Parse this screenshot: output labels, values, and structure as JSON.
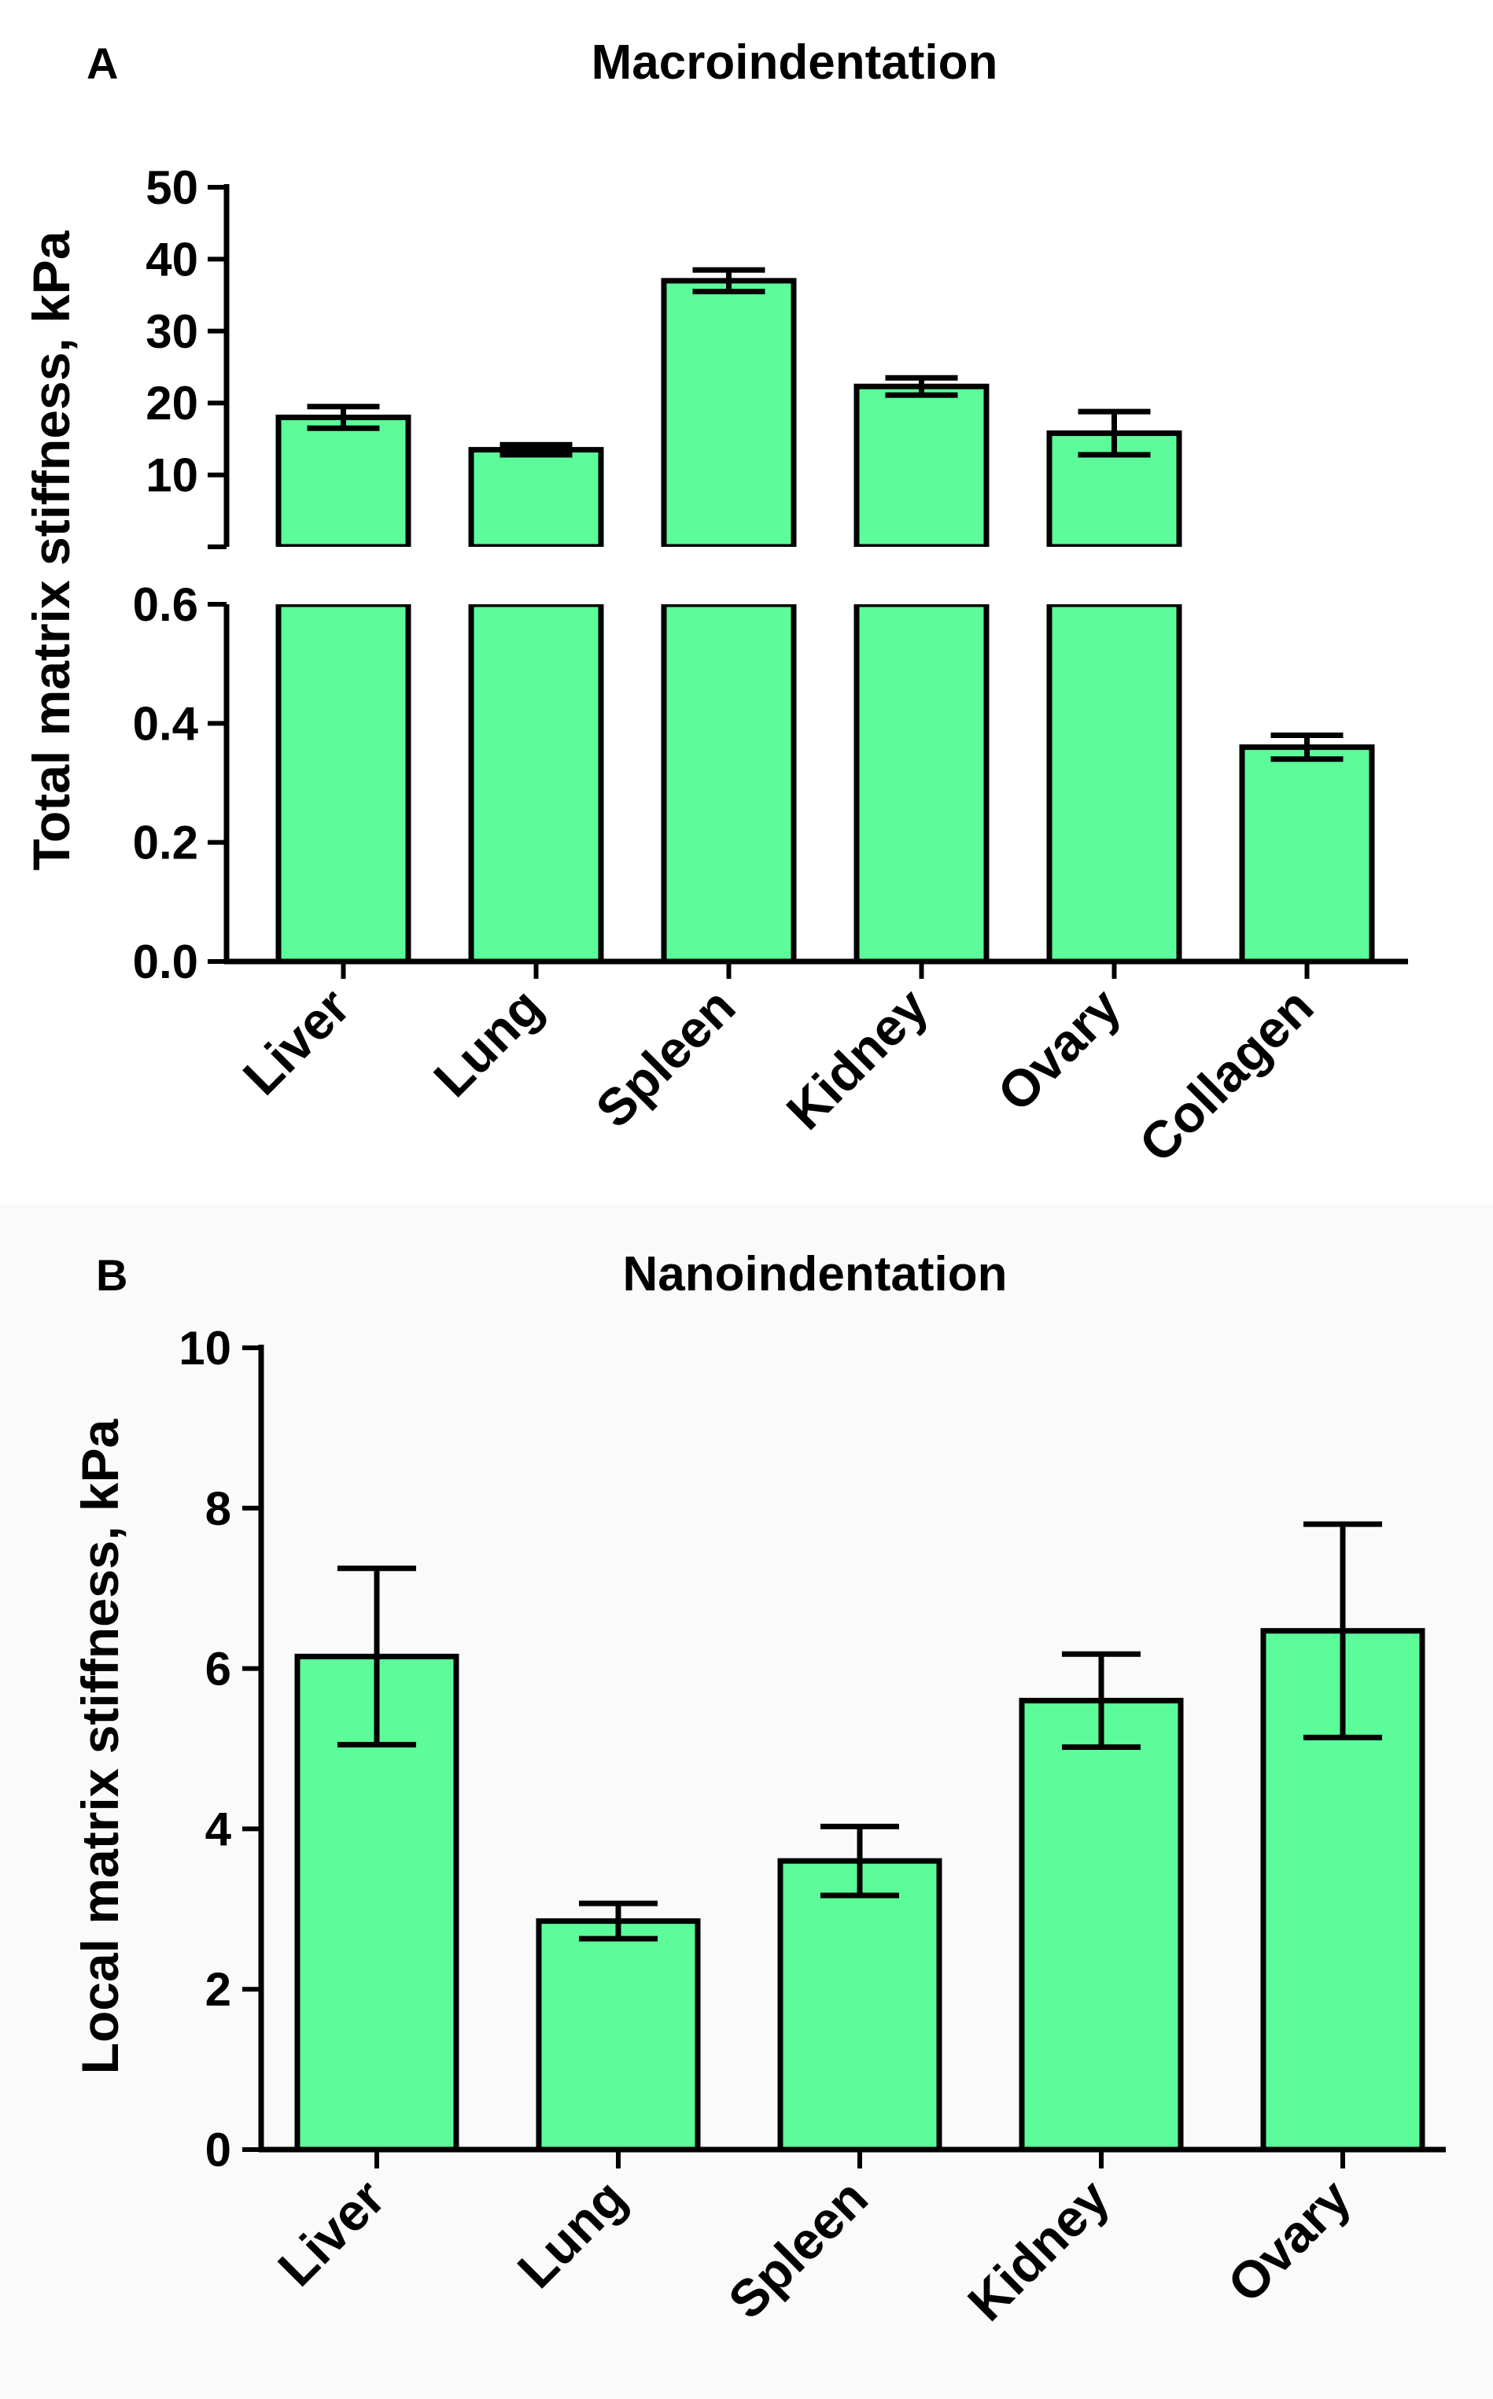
{
  "chart_data": [
    {
      "type": "bar",
      "panel": "A",
      "title": "Macroindentation",
      "ylabel": "Total matrix stiffness, kPa",
      "xlabel": "",
      "categories": [
        "Liver",
        "Lung",
        "Spleen",
        "Kidney",
        "Ovary",
        "Collagen"
      ],
      "values": [
        18.0,
        13.5,
        37.0,
        22.3,
        15.8,
        0.36
      ],
      "errors": [
        1.5,
        0.7,
        1.5,
        1.2,
        3.0,
        0.02
      ],
      "y_axis": "broken",
      "ylim_lower": [
        0,
        0.6
      ],
      "ylim_upper": [
        0,
        50
      ],
      "yticks_lower": [
        "0.0",
        "0.2",
        "0.4",
        "0.6"
      ],
      "yticks_upper": [
        "10",
        "20",
        "30",
        "40",
        "50"
      ]
    },
    {
      "type": "bar",
      "panel": "B",
      "title": "Nanoindentation",
      "ylabel": "Local matrix stiffness, kPa",
      "xlabel": "",
      "categories": [
        "Liver",
        "Lung",
        "Spleen",
        "Kidney",
        "Ovary"
      ],
      "values": [
        6.15,
        2.85,
        3.6,
        5.6,
        6.47
      ],
      "errors": [
        1.1,
        0.22,
        0.43,
        0.58,
        1.33
      ],
      "ylim": [
        0,
        10
      ],
      "yticks": [
        "0",
        "2",
        "4",
        "6",
        "8",
        "10"
      ]
    }
  ]
}
